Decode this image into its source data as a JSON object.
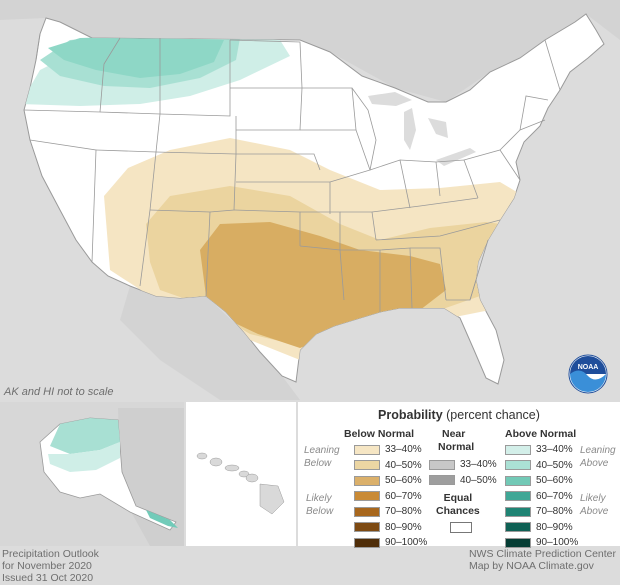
{
  "map": {
    "note": "AK and HI not to scale",
    "logo_text": "NOAA",
    "colors": {
      "background": "#dcdcdc",
      "land": "#ffffff",
      "below_33_40": "#f5e5c3",
      "below_40_50": "#ebd49f",
      "below_50_60": "#d8ad62",
      "above_33_40": "#cfeee7",
      "above_40_50": "#a8e0d3",
      "above_50_60": "#72cbb9"
    }
  },
  "legend": {
    "title_bold": "Probability",
    "title_rest": "(percent chance)",
    "below_header": "Below Normal",
    "near_header_1": "Near",
    "near_header_2": "Normal",
    "above_header": "Above Normal",
    "leaning": "Leaning",
    "below_word": "Below",
    "likely": "Likely",
    "above_word": "Above",
    "equal_1": "Equal",
    "equal_2": "Chances",
    "below_rows": [
      {
        "label": "33–40%",
        "color": "#f6e6c4"
      },
      {
        "label": "40–50%",
        "color": "#ecd6a3"
      },
      {
        "label": "50–60%",
        "color": "#dbb06a"
      },
      {
        "label": "60–70%",
        "color": "#c98a35"
      },
      {
        "label": "70–80%",
        "color": "#a8671d"
      },
      {
        "label": "80–90%",
        "color": "#7d4a12"
      },
      {
        "label": "90–100%",
        "color": "#4f2d08"
      }
    ],
    "near_rows": [
      {
        "label": "33–40%",
        "color": "#c8c8c8"
      },
      {
        "label": "40–50%",
        "color": "#9e9e9e"
      }
    ],
    "above_rows": [
      {
        "label": "33–40%",
        "color": "#d3efe9"
      },
      {
        "label": "40–50%",
        "color": "#abe1d5"
      },
      {
        "label": "50–60%",
        "color": "#72c9b6"
      },
      {
        "label": "60–70%",
        "color": "#3fa796"
      },
      {
        "label": "70–80%",
        "color": "#1f8474"
      },
      {
        "label": "80–90%",
        "color": "#0f6155"
      },
      {
        "label": "90–100%",
        "color": "#053d34"
      }
    ]
  },
  "footer": {
    "left_1": "Precipitation Outlook",
    "left_2": "for November 2020",
    "left_3": "Issued 31 Oct 2020",
    "right_1": "NWS Climate Prediction Center",
    "right_2": "Map by NOAA Climate.gov"
  }
}
